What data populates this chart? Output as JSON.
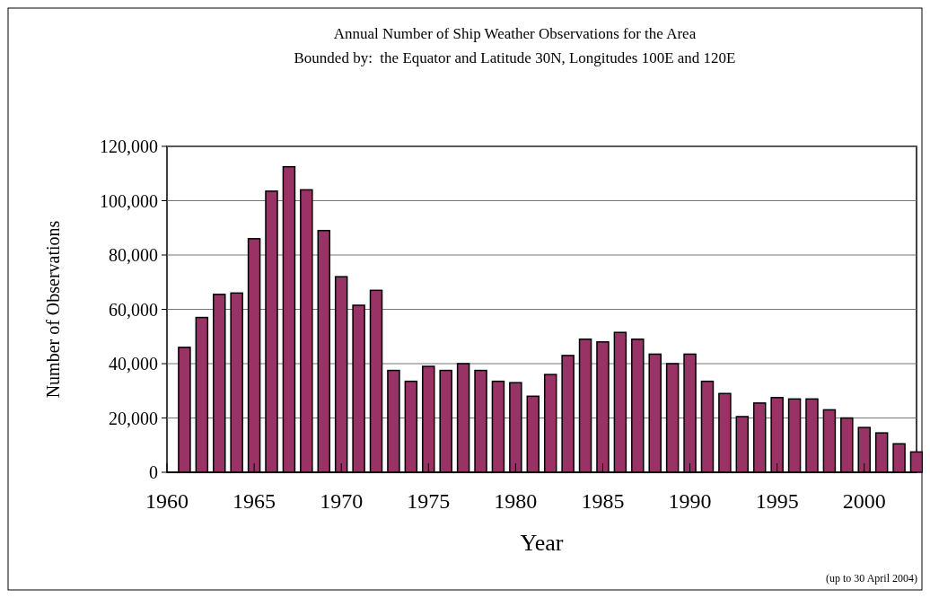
{
  "chart_data": {
    "type": "bar",
    "title": "Annual Number of Ship Weather Observations for the Area",
    "subtitle": "Bounded by:  the Equator and Latitude 30N, Longitudes 100E and 120E",
    "xlabel": "Year",
    "ylabel": "Number of Observations",
    "x": [
      1961,
      1962,
      1963,
      1964,
      1965,
      1966,
      1967,
      1968,
      1969,
      1970,
      1971,
      1972,
      1973,
      1974,
      1975,
      1976,
      1977,
      1978,
      1979,
      1980,
      1981,
      1982,
      1983,
      1984,
      1985,
      1986,
      1987,
      1988,
      1989,
      1990,
      1991,
      1992,
      1993,
      1994,
      1995,
      1996,
      1997,
      1998,
      1999,
      2000,
      2001,
      2002,
      2003
    ],
    "values": [
      46000,
      57000,
      65500,
      66000,
      86000,
      103500,
      112500,
      104000,
      89000,
      72000,
      61500,
      67000,
      37500,
      33500,
      39000,
      37500,
      40000,
      37500,
      33500,
      33000,
      28000,
      36000,
      43000,
      49000,
      48000,
      51500,
      49000,
      43500,
      40000,
      43500,
      33500,
      29000,
      20500,
      25500,
      27500,
      27000,
      27000,
      23000,
      20000,
      16500,
      14500,
      10500,
      7500
    ],
    "color": "#993366",
    "xlim": [
      1960,
      2003
    ],
    "xticks": [
      1960,
      1965,
      1970,
      1975,
      1980,
      1985,
      1990,
      1995,
      2000
    ],
    "ylim": [
      0,
      120000
    ],
    "yticks": [
      {
        "value": 0,
        "label": "0"
      },
      {
        "value": 20000,
        "label": "20,000"
      },
      {
        "value": 40000,
        "label": "40,000"
      },
      {
        "value": 60000,
        "label": "60,000"
      },
      {
        "value": 80000,
        "label": "80,000"
      },
      {
        "value": 100000,
        "label": "100,000"
      },
      {
        "value": 120000,
        "label": "120,000"
      }
    ],
    "grid": "y",
    "annotations": [
      "(up to 30 April 2004)"
    ]
  }
}
